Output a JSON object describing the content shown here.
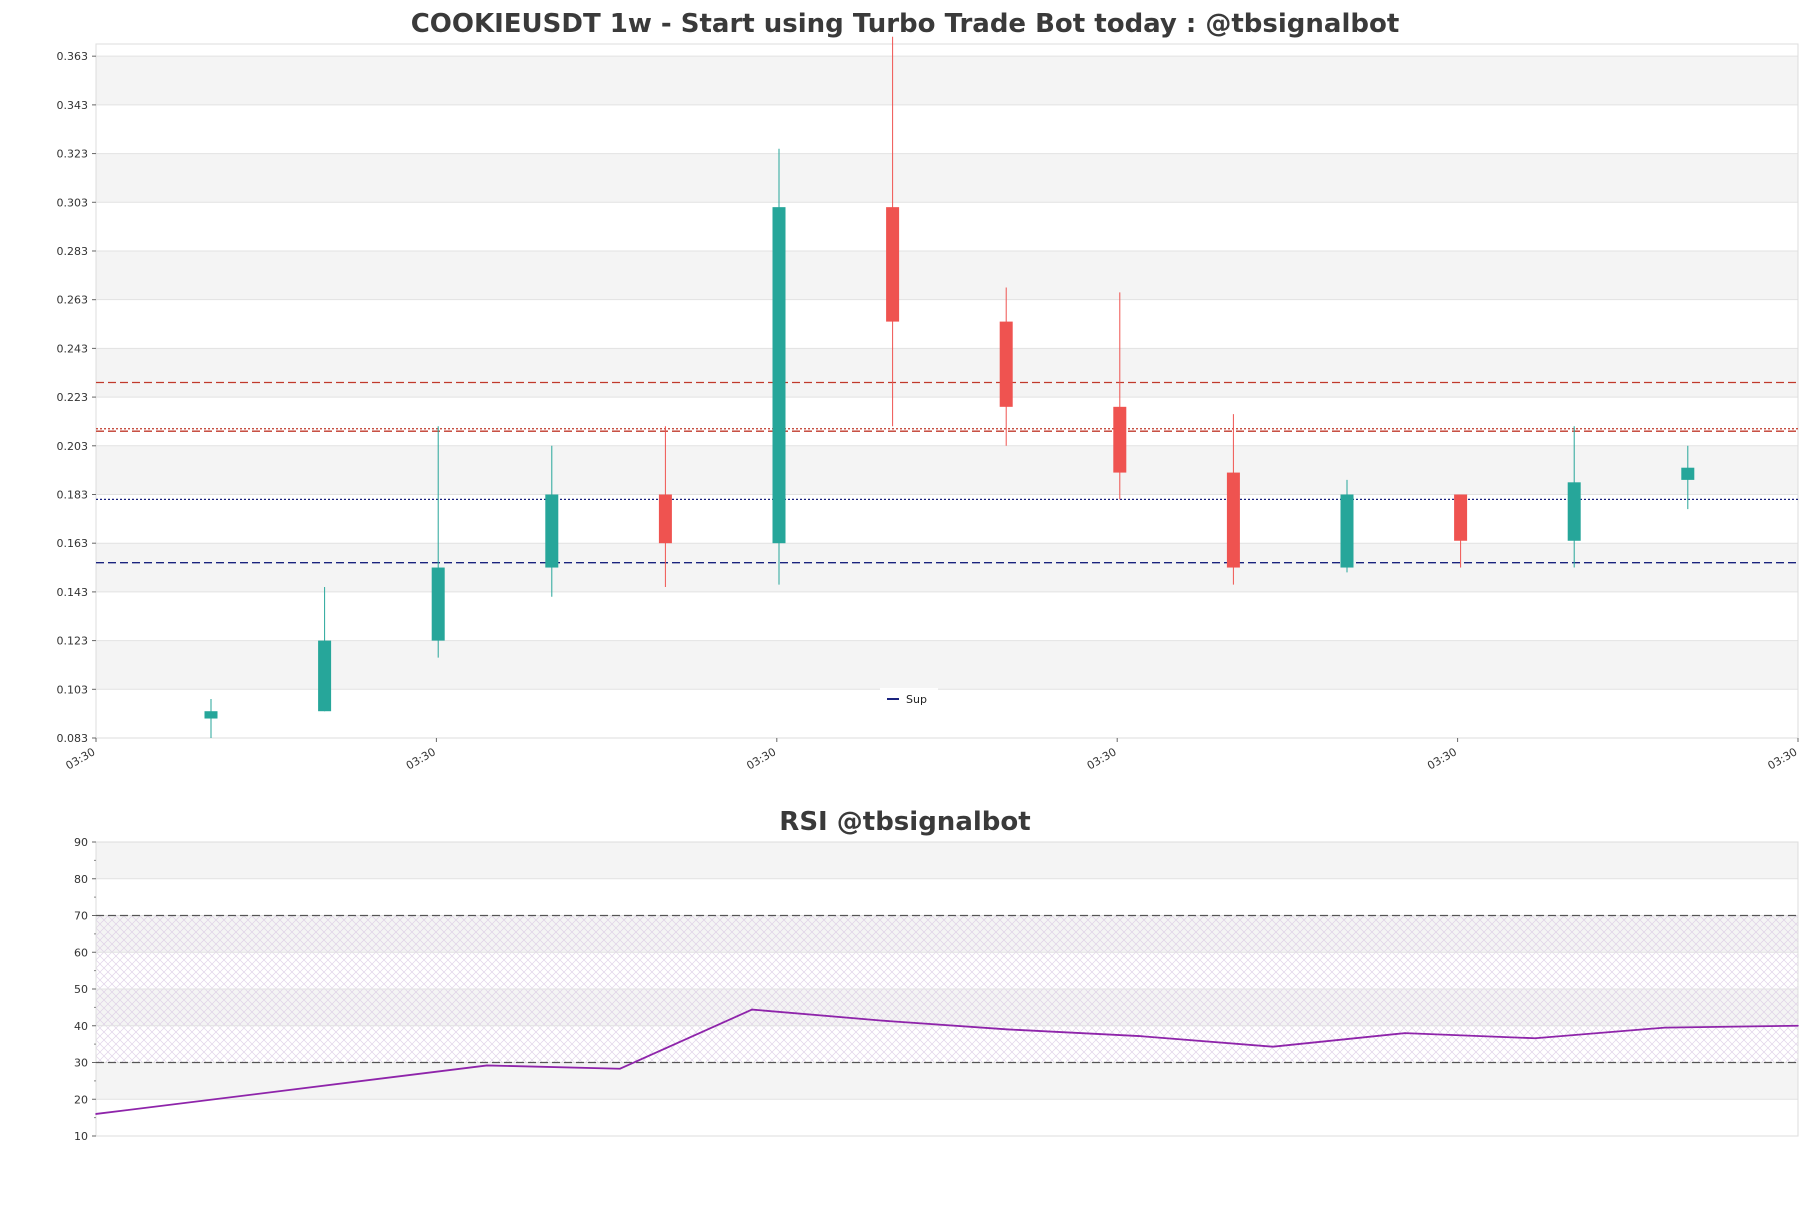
{
  "chart_data": [
    {
      "type": "candlestick",
      "title": "COOKIEUSDT 1w - Start using Turbo Trade Bot today : @tbsignalbot",
      "ylim": [
        0.083,
        0.368
      ],
      "yticks": [
        0.083,
        0.103,
        0.123,
        0.143,
        0.163,
        0.183,
        0.203,
        0.223,
        0.243,
        0.263,
        0.283,
        0.303,
        0.323,
        0.343,
        0.363
      ],
      "ytick_labels": [
        "0.083",
        "0.103",
        "0.123",
        "0.143",
        "0.163",
        "0.183",
        "0.203",
        "0.223",
        "0.243",
        "0.263",
        "0.283",
        "0.303",
        "0.323",
        "0.343",
        "0.363"
      ],
      "xtick_labels": [
        "03:30",
        "03:30",
        "03:30",
        "03:30",
        "03:30",
        "03:30"
      ],
      "grid": true,
      "candles": [
        {
          "open": 0.091,
          "high": 0.099,
          "low": 0.083,
          "close": 0.094
        },
        {
          "open": 0.094,
          "high": 0.145,
          "low": 0.094,
          "close": 0.123
        },
        {
          "open": 0.123,
          "high": 0.211,
          "low": 0.116,
          "close": 0.153
        },
        {
          "open": 0.153,
          "high": 0.203,
          "low": 0.141,
          "close": 0.183
        },
        {
          "open": 0.183,
          "high": 0.211,
          "low": 0.145,
          "close": 0.163
        },
        {
          "open": 0.163,
          "high": 0.325,
          "low": 0.146,
          "close": 0.301
        },
        {
          "open": 0.301,
          "high": 0.371,
          "low": 0.211,
          "close": 0.254
        },
        {
          "open": 0.254,
          "high": 0.268,
          "low": 0.203,
          "close": 0.219
        },
        {
          "open": 0.219,
          "high": 0.266,
          "low": 0.181,
          "close": 0.192
        },
        {
          "open": 0.192,
          "high": 0.216,
          "low": 0.146,
          "close": 0.153
        },
        {
          "open": 0.153,
          "high": 0.189,
          "low": 0.151,
          "close": 0.183
        },
        {
          "open": 0.183,
          "high": 0.183,
          "low": 0.153,
          "close": 0.164
        },
        {
          "open": 0.164,
          "high": 0.211,
          "low": 0.153,
          "close": 0.188
        },
        {
          "open": 0.189,
          "high": 0.203,
          "low": 0.177,
          "close": 0.194
        }
      ],
      "hlines": [
        {
          "y": 0.229,
          "color": "#c0392b",
          "style": "dashed"
        },
        {
          "y": 0.21,
          "color": "#c0392b",
          "style": "dotted"
        },
        {
          "y": 0.209,
          "color": "#c0392b",
          "style": "dashed"
        },
        {
          "y": 0.181,
          "color": "#1a237e",
          "style": "dotted"
        },
        {
          "y": 0.155,
          "color": "#1a237e",
          "style": "dashed"
        }
      ],
      "legend": {
        "label": "Sup",
        "color": "#1a237e",
        "placement": "bottom-center"
      },
      "colors": {
        "up": "#26a69a",
        "down": "#ef5350"
      }
    },
    {
      "type": "line",
      "title": "RSI @tbsignalbot",
      "ylim": [
        10,
        90
      ],
      "yticks": [
        10,
        20,
        30,
        40,
        50,
        60,
        70,
        80,
        90
      ],
      "ytick_labels": [
        "10",
        "20",
        "30",
        "40",
        "50",
        "60",
        "70",
        "80",
        "90"
      ],
      "series": [
        {
          "values": [
            16.0,
            29.2,
            28.3,
            44.4,
            41.4,
            39.0,
            37.2,
            34.3,
            38.0,
            36.6,
            39.5,
            40.0
          ],
          "color": "#8e24aa"
        }
      ],
      "hlines": [
        {
          "y": 70,
          "color": "#555555",
          "style": "dashed"
        },
        {
          "y": 30,
          "color": "#555555",
          "style": "dashed"
        }
      ],
      "grid": true
    }
  ]
}
